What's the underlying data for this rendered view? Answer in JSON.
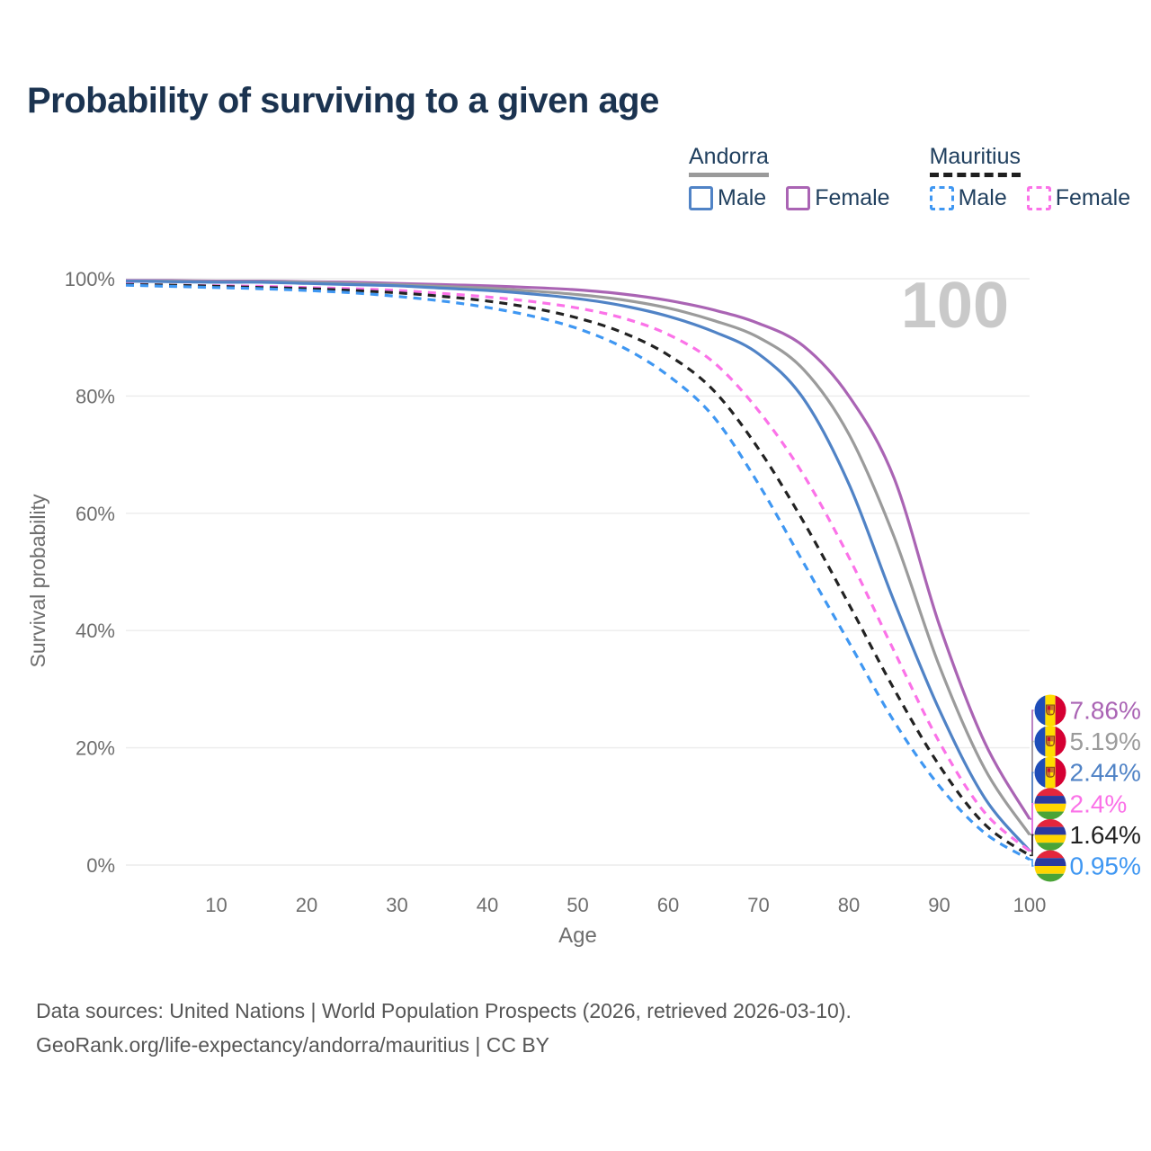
{
  "title": "Probability of surviving to a given age",
  "watermark": "100",
  "legend": {
    "groups": [
      {
        "name": "Andorra",
        "line_style": "solid",
        "line_color": "#9a9a9a",
        "items": [
          {
            "label": "Male",
            "color": "#5083c6",
            "style": "solid"
          },
          {
            "label": "Female",
            "color": "#aa64b4",
            "style": "solid"
          }
        ]
      },
      {
        "name": "Mauritius",
        "line_style": "dashed",
        "line_color": "#1f1f1f",
        "items": [
          {
            "label": "Male",
            "color": "#3f97f2",
            "style": "dashed"
          },
          {
            "label": "Female",
            "color": "#fb72e8",
            "style": "dashed"
          }
        ]
      }
    ]
  },
  "chart_data": {
    "type": "line",
    "title": "Probability of surviving to a given age",
    "xlabel": "Age",
    "ylabel": "Survival probability",
    "xlim": [
      0,
      100
    ],
    "ylim": [
      0,
      100
    ],
    "grid": "horizontal",
    "legend_position": "top-right",
    "x_ticks": [
      10,
      20,
      30,
      40,
      50,
      60,
      70,
      80,
      90,
      100
    ],
    "y_ticks": [
      {
        "value": 0,
        "label": "0%"
      },
      {
        "value": 20,
        "label": "20%"
      },
      {
        "value": 40,
        "label": "40%"
      },
      {
        "value": 60,
        "label": "60%"
      },
      {
        "value": 80,
        "label": "80%"
      },
      {
        "value": 100,
        "label": "100%"
      }
    ],
    "x": [
      0,
      5,
      10,
      15,
      20,
      25,
      30,
      35,
      40,
      45,
      50,
      55,
      60,
      65,
      70,
      75,
      80,
      85,
      90,
      95,
      100
    ],
    "series": [
      {
        "name": "Andorra Female",
        "country": "Andorra",
        "sex": "Female",
        "color": "#aa64b4",
        "line_style": "solid",
        "flag": "andorra",
        "end_label": "7.86%",
        "values": [
          99.7,
          99.7,
          99.6,
          99.6,
          99.5,
          99.4,
          99.2,
          99.0,
          98.8,
          98.5,
          98.1,
          97.4,
          96.3,
          94.7,
          92.4,
          88.5,
          80.0,
          66.0,
          41.0,
          21.0,
          7.86
        ]
      },
      {
        "name": "Andorra Both sexes",
        "country": "Andorra",
        "sex": "Both",
        "color": "#9b9b9b",
        "line_style": "solid",
        "flag": "andorra",
        "end_label": "5.19%",
        "values": [
          99.6,
          99.6,
          99.5,
          99.5,
          99.4,
          99.2,
          99.0,
          98.7,
          98.4,
          97.9,
          97.3,
          96.4,
          95.0,
          92.9,
          90.0,
          84.5,
          73.5,
          56.0,
          34.0,
          16.5,
          5.19
        ]
      },
      {
        "name": "Andorra Male",
        "country": "Andorra",
        "sex": "Male",
        "color": "#5083c6",
        "line_style": "solid",
        "flag": "andorra",
        "end_label": "2.44%",
        "values": [
          99.6,
          99.5,
          99.4,
          99.4,
          99.2,
          99.0,
          98.8,
          98.4,
          98.0,
          97.4,
          96.6,
          95.4,
          93.6,
          91.0,
          87.2,
          79.5,
          65.0,
          45.0,
          26.5,
          11.5,
          2.44
        ]
      },
      {
        "name": "Mauritius Female",
        "country": "Mauritius",
        "sex": "Female",
        "color": "#fb72e8",
        "line_style": "dashed",
        "flag": "mauritius",
        "end_label": "2.4%",
        "values": [
          99.1,
          98.9,
          98.8,
          98.7,
          98.5,
          98.3,
          98.0,
          97.5,
          96.9,
          96.1,
          95.0,
          93.3,
          90.5,
          85.8,
          77.5,
          66.5,
          52.5,
          36.5,
          21.0,
          9.0,
          2.4
        ]
      },
      {
        "name": "Mauritius Both sexes",
        "country": "Mauritius",
        "sex": "Both",
        "color": "#222222",
        "line_style": "dashed",
        "flag": "mauritius",
        "end_label": "1.64%",
        "values": [
          99.0,
          98.9,
          98.7,
          98.5,
          98.3,
          98.0,
          97.6,
          97.0,
          96.2,
          95.0,
          93.3,
          90.8,
          87.0,
          81.0,
          71.0,
          58.5,
          44.5,
          30.0,
          17.0,
          7.0,
          1.64
        ]
      },
      {
        "name": "Mauritius Male",
        "country": "Mauritius",
        "sex": "Male",
        "color": "#3f97f2",
        "line_style": "dashed",
        "flag": "mauritius",
        "end_label": "0.95%",
        "values": [
          98.9,
          98.7,
          98.5,
          98.3,
          98.0,
          97.6,
          97.0,
          96.2,
          95.1,
          93.6,
          91.5,
          88.3,
          83.5,
          76.5,
          65.0,
          51.5,
          38.0,
          24.5,
          13.5,
          5.5,
          0.95
        ]
      }
    ]
  },
  "flag_colors": {
    "andorra": {
      "blue": "#1e4db8",
      "yellow": "#fedd00",
      "red": "#d50032",
      "emblem": "#c8742a",
      "emblem_dark": "#8a4a16",
      "emblem_red": "#c8102e"
    },
    "mauritius": {
      "red": "#e4263c",
      "blue": "#2a3a9e",
      "yellow": "#ffd500",
      "green": "#4aa437"
    }
  },
  "style": {
    "grid_color": "#ececec",
    "axis_text_color": "#6e6e6e",
    "watermark_color": "#c9c9c9",
    "title_color": "#1b3350"
  },
  "footer": {
    "line1": "Data sources: United Nations | World Population Prospects (2026, retrieved 2026-03-10).",
    "line2": "GeoRank.org/life-expectancy/andorra/mauritius | CC BY"
  }
}
